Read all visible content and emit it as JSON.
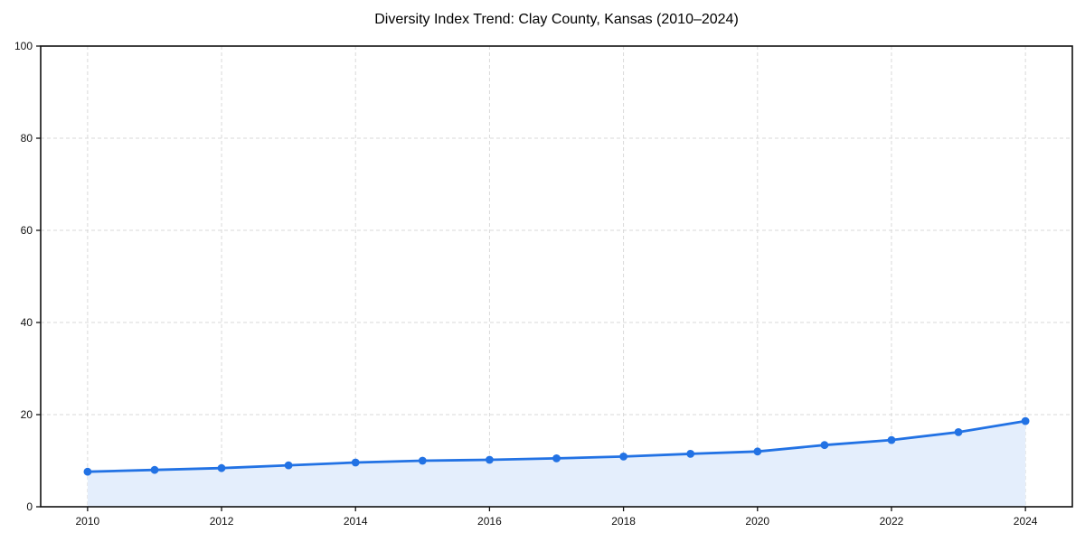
{
  "chart_data": {
    "type": "area",
    "title": "Diversity Index Trend: Clay County, Kansas (2010–2024)",
    "xlabel": "",
    "ylabel": "",
    "x": [
      2010,
      2011,
      2012,
      2013,
      2014,
      2015,
      2016,
      2017,
      2018,
      2019,
      2020,
      2021,
      2022,
      2023,
      2024
    ],
    "series": [
      {
        "name": "Diversity Index",
        "values": [
          7.6,
          8.0,
          8.4,
          9.0,
          9.6,
          10.0,
          10.2,
          10.5,
          10.9,
          11.5,
          12.0,
          13.4,
          14.5,
          16.2,
          18.6
        ]
      }
    ],
    "ylim": [
      0,
      100
    ],
    "yticks": [
      0,
      20,
      40,
      60,
      80,
      100
    ],
    "xticks": [
      2010,
      2012,
      2014,
      2016,
      2018,
      2020,
      2022,
      2024
    ],
    "grid": "dashed",
    "legend_position": "none",
    "marker": "circle",
    "colors": {
      "line": "#2272e4",
      "marker": "#2272e4",
      "fill": "#e4eefc",
      "grid": "#d9d9d9",
      "axis": "#111111",
      "tick_label": "#111111",
      "title": "#000000",
      "background": "#ffffff"
    }
  }
}
